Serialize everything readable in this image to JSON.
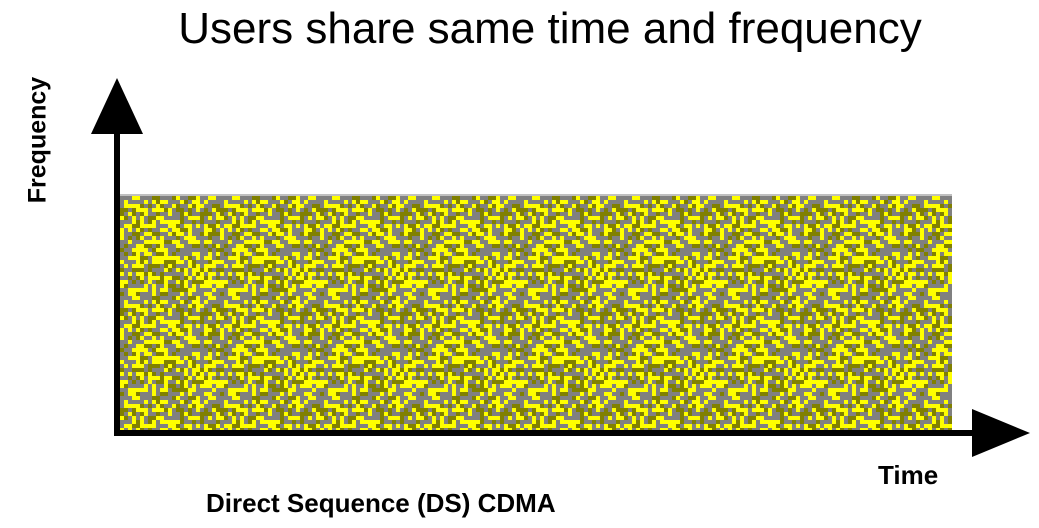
{
  "diagram": {
    "title": "Users share same time and frequency",
    "y_axis_label": "Frequency",
    "x_axis_label": "Time",
    "caption": "Direct Sequence (DS) CDMA",
    "colors": {
      "axis": "#000000",
      "noise_base": "#808080",
      "noise_yellow": "#ffff00",
      "noise_olive": "#808000",
      "band_border": "#c0c0c0"
    }
  }
}
